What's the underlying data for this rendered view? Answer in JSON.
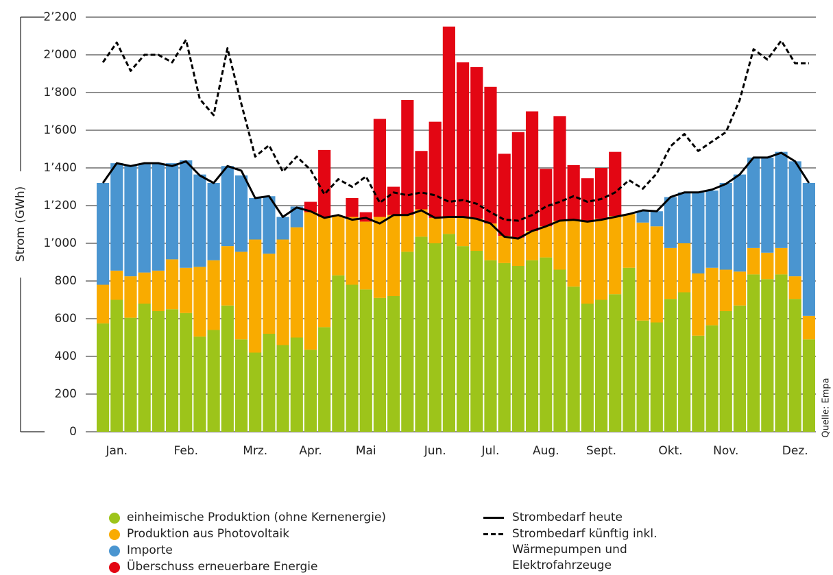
{
  "chart_data": {
    "type": "bar",
    "y_label": "Strom (GWh)",
    "source": "Quelle: Empa",
    "categories": [
      null,
      "Jan.",
      null,
      null,
      null,
      null,
      "Feb.",
      null,
      null,
      null,
      null,
      "Mrz.",
      null,
      null,
      null,
      "Apr.",
      null,
      null,
      null,
      "Mai",
      null,
      null,
      null,
      null,
      "Jun.",
      null,
      null,
      null,
      "Jul.",
      null,
      null,
      null,
      "Aug.",
      null,
      null,
      null,
      "Sept.",
      null,
      null,
      null,
      null,
      "Okt.",
      null,
      null,
      null,
      "Nov.",
      null,
      null,
      null,
      null,
      "Dez.",
      null
    ],
    "ylim": [
      0,
      2200
    ],
    "yticks": [
      0,
      200,
      400,
      600,
      800,
      {
        "value": 1000,
        "label": "1’000"
      },
      {
        "value": 1200,
        "label": "1’200"
      },
      {
        "value": 1400,
        "label": "1’400"
      },
      {
        "value": 1600,
        "label": "1’600"
      },
      {
        "value": 1800,
        "label": "1’800"
      },
      {
        "value": 2000,
        "label": "2’000"
      },
      {
        "value": 2200,
        "label": "2’200"
      }
    ],
    "grid": true,
    "series": [
      {
        "name": "einheimische Produktion (ohne Kernenergie)",
        "type": "bar",
        "color": "#9dc41a",
        "values": [
          575,
          700,
          605,
          680,
          640,
          650,
          630,
          505,
          540,
          670,
          490,
          420,
          520,
          460,
          500,
          435,
          555,
          830,
          780,
          755,
          710,
          720,
          955,
          1035,
          1000,
          1050,
          985,
          960,
          910,
          895,
          880,
          910,
          925,
          860,
          770,
          680,
          700,
          730,
          870,
          590,
          580,
          705,
          740,
          510,
          565,
          640,
          670,
          835,
          810,
          835,
          705,
          490
        ]
      },
      {
        "name": "Produktion aus Photovoltaik",
        "type": "bar",
        "color": "#f9ab00",
        "values": [
          205,
          155,
          220,
          165,
          215,
          265,
          240,
          370,
          370,
          315,
          465,
          600,
          425,
          560,
          585,
          730,
          585,
          315,
          360,
          360,
          430,
          430,
          195,
          145,
          135,
          85,
          155,
          170,
          195,
          145,
          150,
          155,
          165,
          260,
          355,
          435,
          430,
          415,
          285,
          520,
          510,
          270,
          260,
          330,
          305,
          220,
          180,
          140,
          140,
          140,
          120,
          125
        ]
      },
      {
        "name": "Importe",
        "type": "bar",
        "color": "#4a95d0",
        "values": [
          540,
          570,
          590,
          575,
          565,
          510,
          570,
          490,
          410,
          425,
          405,
          220,
          305,
          120,
          110,
          0,
          0,
          0,
          0,
          0,
          0,
          0,
          0,
          0,
          0,
          0,
          0,
          0,
          0,
          0,
          0,
          0,
          0,
          0,
          0,
          0,
          0,
          0,
          0,
          60,
          80,
          270,
          270,
          430,
          410,
          460,
          515,
          480,
          505,
          510,
          610,
          705
        ]
      },
      {
        "name": "Überschuss erneuerbare Energie",
        "type": "bar",
        "color": "#e30613",
        "values": [
          0,
          0,
          0,
          0,
          0,
          0,
          0,
          0,
          0,
          0,
          0,
          0,
          0,
          0,
          0,
          55,
          355,
          0,
          100,
          50,
          520,
          150,
          610,
          310,
          510,
          1015,
          820,
          805,
          725,
          435,
          560,
          635,
          305,
          555,
          290,
          230,
          270,
          340,
          0,
          0,
          0,
          0,
          0,
          0,
          0,
          0,
          0,
          0,
          0,
          0,
          0,
          0
        ]
      },
      {
        "name": "Strombedarf heute",
        "type": "line",
        "color": "#000000",
        "dashed": false,
        "values": [
          1320,
          1425,
          1410,
          1425,
          1425,
          1410,
          1435,
          1360,
          1320,
          1410,
          1385,
          1240,
          1250,
          1140,
          1190,
          1170,
          1135,
          1150,
          1125,
          1135,
          1105,
          1150,
          1150,
          1175,
          1135,
          1140,
          1140,
          1130,
          1105,
          1035,
          1025,
          1065,
          1090,
          1120,
          1125,
          1115,
          1125,
          1140,
          1155,
          1175,
          1170,
          1245,
          1270,
          1270,
          1285,
          1315,
          1365,
          1455,
          1455,
          1480,
          1435,
          1320
        ]
      },
      {
        "name": "Strombedarf künftig inkl. Wärmepumpen und Elektrofahrzeuge",
        "type": "line",
        "color": "#000000",
        "dashed": true,
        "values": [
          1960,
          2065,
          1915,
          2000,
          2000,
          1960,
          2080,
          1765,
          1680,
          2035,
          1740,
          1460,
          1520,
          1380,
          1460,
          1390,
          1260,
          1340,
          1300,
          1355,
          1215,
          1270,
          1255,
          1270,
          1255,
          1220,
          1230,
          1210,
          1165,
          1125,
          1120,
          1150,
          1195,
          1220,
          1250,
          1220,
          1235,
          1270,
          1335,
          1290,
          1370,
          1515,
          1580,
          1490,
          1540,
          1590,
          1760,
          2030,
          1975,
          2075,
          1955,
          1955
        ]
      }
    ]
  }
}
